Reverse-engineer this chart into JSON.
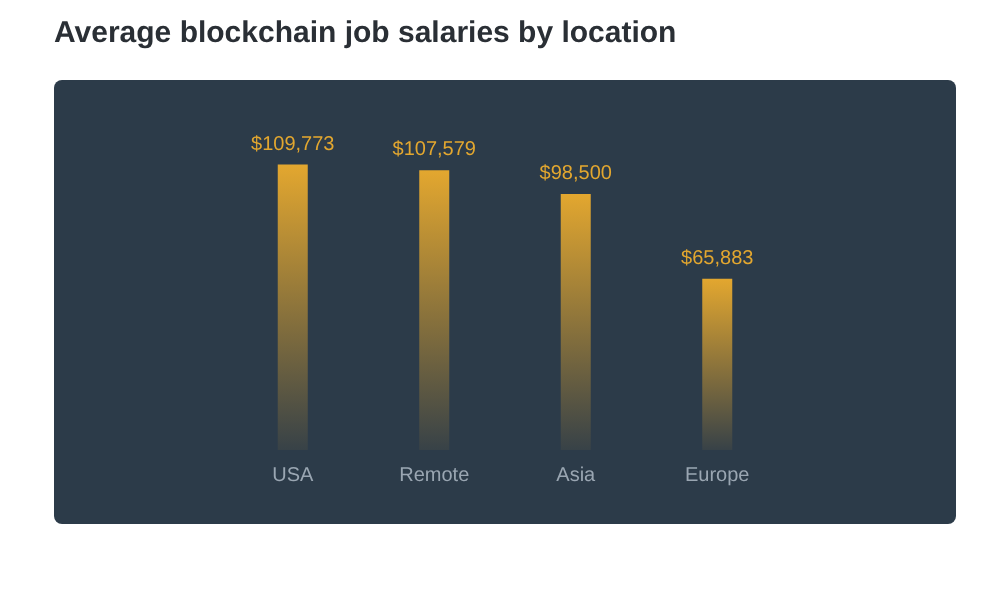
{
  "chart_data": {
    "type": "bar",
    "title": "Average blockchain job salaries by location",
    "categories": [
      "USA",
      "Remote",
      "Asia",
      "Europe"
    ],
    "values": [
      109773,
      107579,
      98500,
      65883
    ],
    "value_labels": [
      "$109,773",
      "$107,579",
      "$98,500",
      "$65,883"
    ],
    "color": "#e3a72f"
  }
}
